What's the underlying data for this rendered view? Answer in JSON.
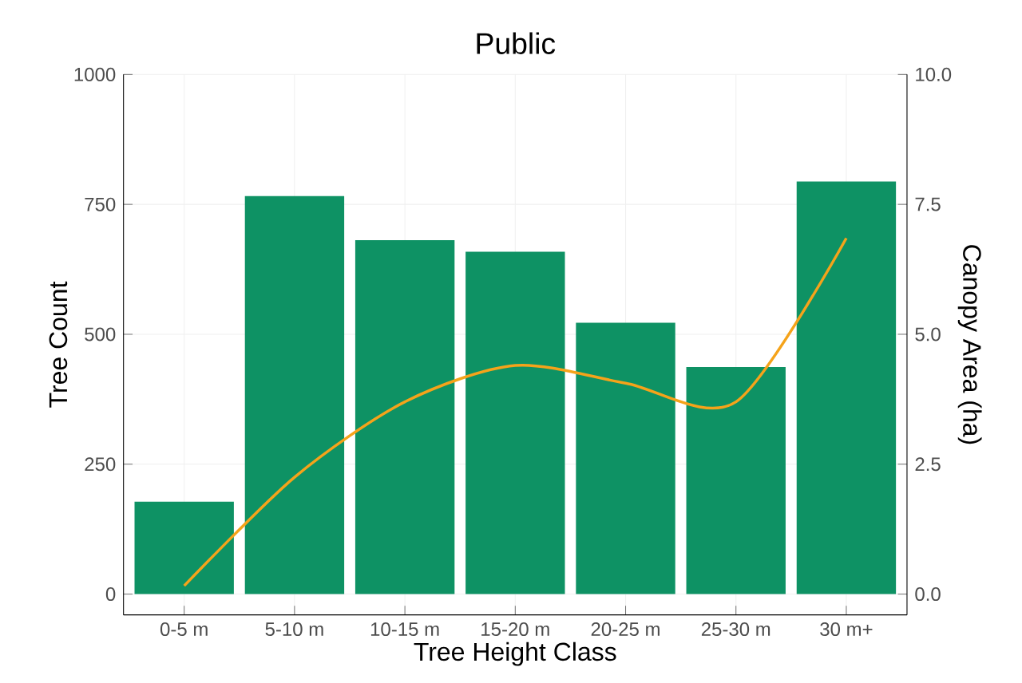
{
  "chart_data": {
    "type": "bar",
    "title": "Public",
    "xlabel": "Tree Height Class",
    "ylabel": "Tree Count",
    "y2label": "Canopy Area (ha)",
    "categories": [
      "0-5 m",
      "5-10 m",
      "10-15 m",
      "15-20 m",
      "20-25 m",
      "25-30 m",
      "30 m+"
    ],
    "series": [
      {
        "color": "#0e9264",
        "values": [
          178,
          766,
          681,
          659,
          522,
          437,
          794
        ]
      },
      {
        "type": "line",
        "axis": "y2",
        "color": "#f5a31a",
        "values": [
          0.16,
          2.25,
          3.7,
          4.4,
          4.06,
          3.7,
          6.85
        ]
      }
    ],
    "ylim": [
      -40,
      1000
    ],
    "yticks": [
      0,
      250,
      500,
      750,
      1000
    ],
    "y2lim": [
      -0.4,
      10
    ],
    "y2ticks": [
      {
        "value": 0,
        "label": "0.0"
      },
      {
        "value": 2.5,
        "label": "2.5"
      },
      {
        "value": 5,
        "label": "5.0"
      },
      {
        "value": 7.5,
        "label": "7.5"
      },
      {
        "value": 10,
        "label": "10.0"
      }
    ],
    "grid": true
  }
}
